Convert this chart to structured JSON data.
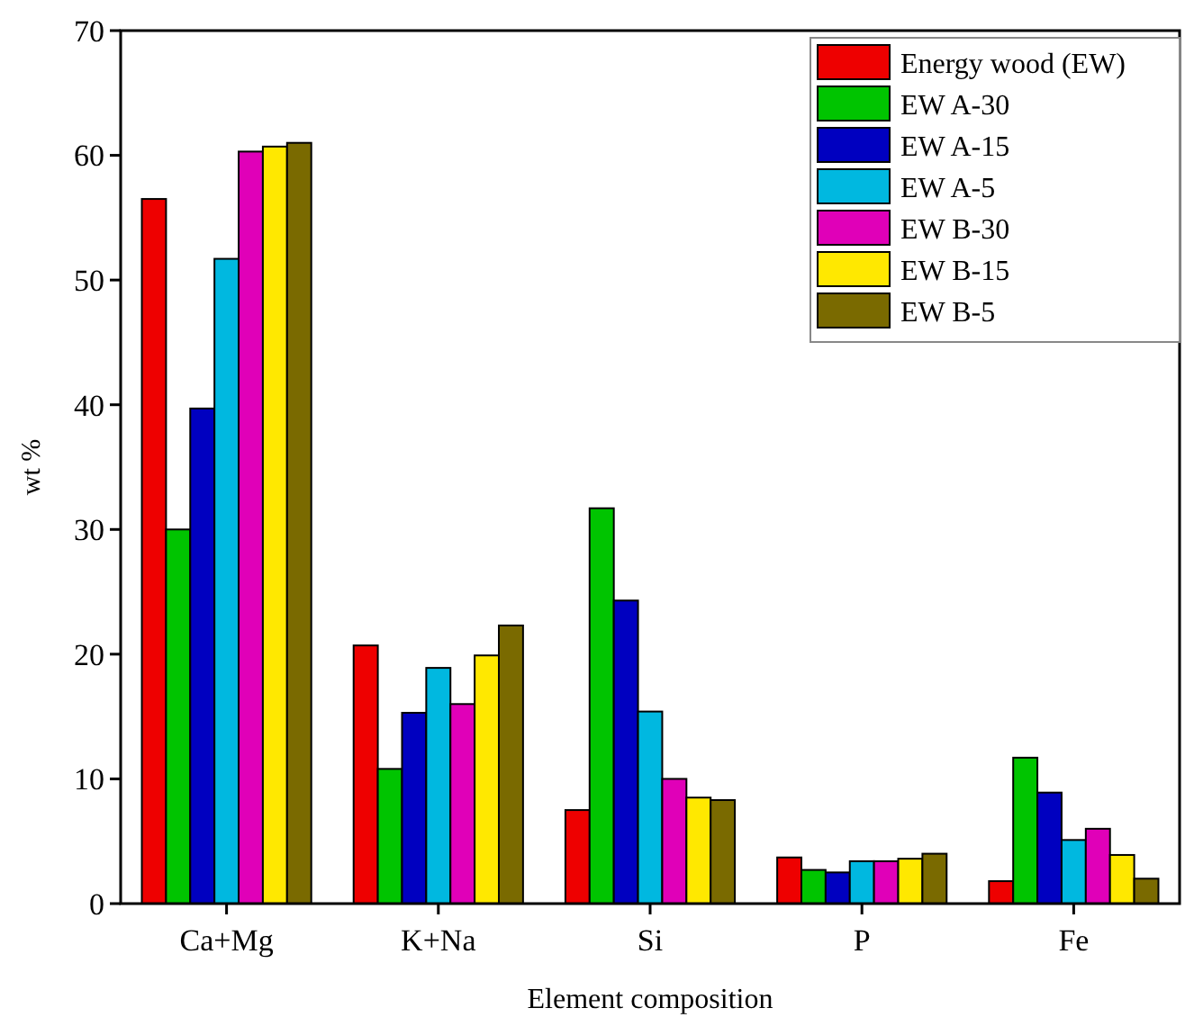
{
  "chart_data": {
    "type": "bar",
    "xlabel": "Element composition",
    "ylabel": "wt %",
    "categories": [
      "Ca+Mg",
      "K+Na",
      "Si",
      "P",
      "Fe"
    ],
    "series": [
      {
        "name": "Energy wood (EW)",
        "color": "#ee0000",
        "values": [
          56.5,
          20.7,
          7.5,
          3.7,
          1.8
        ]
      },
      {
        "name": "EW A-30",
        "color": "#00c400",
        "values": [
          30,
          10.8,
          31.7,
          2.7,
          11.7
        ]
      },
      {
        "name": "EW A-15",
        "color": "#0000c0",
        "values": [
          39.7,
          15.3,
          24.3,
          2.5,
          8.9
        ]
      },
      {
        "name": "EW A-5",
        "color": "#00b8e0",
        "values": [
          51.7,
          18.9,
          15.4,
          3.4,
          5.1
        ]
      },
      {
        "name": "EW B-30",
        "color": "#e000b8",
        "values": [
          60.3,
          16.0,
          10.0,
          3.4,
          6.0
        ]
      },
      {
        "name": "EW B-15",
        "color": "#ffe800",
        "values": [
          60.7,
          19.9,
          8.5,
          3.6,
          3.9
        ]
      },
      {
        "name": "EW B-5",
        "color": "#7a6a00",
        "values": [
          61.0,
          22.3,
          8.3,
          4.0,
          2.0
        ]
      }
    ],
    "ylim": [
      0,
      70
    ],
    "yticks": [
      0,
      10,
      20,
      30,
      40,
      50,
      60,
      70
    ],
    "legend": "top right"
  }
}
